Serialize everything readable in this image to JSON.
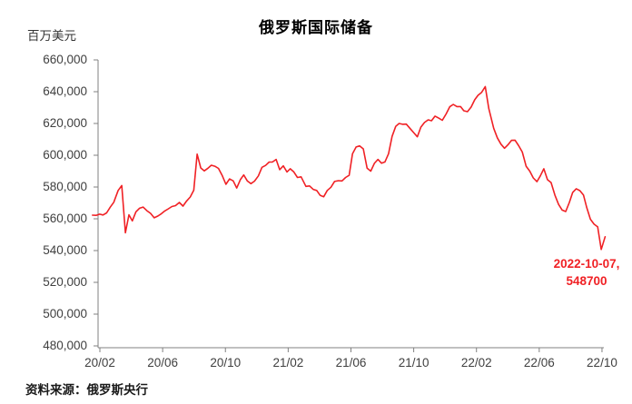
{
  "chart_data": {
    "type": "line",
    "title": "俄罗斯国际储备",
    "unit_label": "百万美元",
    "source": "资料来源：俄罗斯央行",
    "legend": [],
    "grid": false,
    "line_color": "#f02125",
    "axis_color": "#808080",
    "tick_label_color": "#404040",
    "ylim": [
      480000,
      660000
    ],
    "y_tick_labels": [
      "660,000",
      "640,000",
      "620,000",
      "600,000",
      "580,000",
      "560,000",
      "540,000",
      "520,000",
      "500,000",
      "480,000"
    ],
    "x_tick_labels": [
      "20/02",
      "20/06",
      "20/10",
      "21/02",
      "21/06",
      "21/10",
      "22/02",
      "22/06",
      "22/10"
    ],
    "annotation": {
      "line1": "2022-10-07,",
      "line2": "548700",
      "color": "#f02125"
    },
    "series": [
      [
        "2020-01-17",
        562300
      ],
      [
        "2020-01-24",
        562200
      ],
      [
        "2020-01-31",
        562900
      ],
      [
        "2020-02-07",
        562400
      ],
      [
        "2020-02-14",
        563700
      ],
      [
        "2020-02-21",
        567300
      ],
      [
        "2020-02-28",
        570400
      ],
      [
        "2020-03-06",
        577800
      ],
      [
        "2020-03-13",
        580900
      ],
      [
        "2020-03-20",
        551200
      ],
      [
        "2020-03-27",
        562500
      ],
      [
        "2020-04-03",
        558700
      ],
      [
        "2020-04-10",
        564400
      ],
      [
        "2020-04-17",
        566600
      ],
      [
        "2020-04-24",
        567400
      ],
      [
        "2020-05-01",
        565100
      ],
      [
        "2020-05-08",
        563400
      ],
      [
        "2020-05-15",
        560600
      ],
      [
        "2020-05-22",
        561700
      ],
      [
        "2020-05-29",
        563200
      ],
      [
        "2020-06-05",
        564900
      ],
      [
        "2020-06-12",
        566300
      ],
      [
        "2020-06-19",
        567700
      ],
      [
        "2020-06-26",
        568300
      ],
      [
        "2020-07-03",
        570300
      ],
      [
        "2020-07-10",
        568000
      ],
      [
        "2020-07-17",
        571200
      ],
      [
        "2020-07-24",
        573700
      ],
      [
        "2020-07-31",
        578000
      ],
      [
        "2020-08-07",
        600700
      ],
      [
        "2020-08-14",
        592000
      ],
      [
        "2020-08-21",
        590200
      ],
      [
        "2020-08-28",
        591800
      ],
      [
        "2020-09-04",
        593700
      ],
      [
        "2020-09-11",
        593100
      ],
      [
        "2020-09-18",
        591700
      ],
      [
        "2020-09-25",
        587400
      ],
      [
        "2020-10-02",
        581700
      ],
      [
        "2020-10-09",
        585100
      ],
      [
        "2020-10-16",
        583900
      ],
      [
        "2020-10-23",
        579400
      ],
      [
        "2020-10-30",
        584600
      ],
      [
        "2020-11-06",
        587600
      ],
      [
        "2020-11-13",
        583900
      ],
      [
        "2020-11-20",
        582100
      ],
      [
        "2020-11-27",
        583700
      ],
      [
        "2020-12-04",
        587000
      ],
      [
        "2020-12-11",
        592400
      ],
      [
        "2020-12-18",
        593600
      ],
      [
        "2020-12-25",
        595700
      ],
      [
        "2021-01-01",
        595800
      ],
      [
        "2021-01-08",
        597400
      ],
      [
        "2021-01-15",
        590900
      ],
      [
        "2021-01-22",
        593300
      ],
      [
        "2021-01-29",
        589500
      ],
      [
        "2021-02-05",
        591500
      ],
      [
        "2021-02-12",
        589500
      ],
      [
        "2021-02-19",
        586000
      ],
      [
        "2021-02-26",
        586400
      ],
      [
        "2021-03-05",
        580400
      ],
      [
        "2021-03-12",
        580700
      ],
      [
        "2021-03-19",
        578500
      ],
      [
        "2021-03-26",
        577800
      ],
      [
        "2021-04-02",
        574800
      ],
      [
        "2021-04-09",
        573900
      ],
      [
        "2021-04-16",
        577800
      ],
      [
        "2021-04-23",
        579800
      ],
      [
        "2021-04-30",
        583500
      ],
      [
        "2021-05-07",
        584000
      ],
      [
        "2021-05-14",
        583800
      ],
      [
        "2021-05-21",
        586000
      ],
      [
        "2021-05-28",
        587400
      ],
      [
        "2021-06-04",
        600900
      ],
      [
        "2021-06-11",
        605200
      ],
      [
        "2021-06-18",
        605900
      ],
      [
        "2021-06-25",
        604000
      ],
      [
        "2021-07-02",
        591800
      ],
      [
        "2021-07-09",
        590000
      ],
      [
        "2021-07-16",
        594900
      ],
      [
        "2021-07-23",
        597400
      ],
      [
        "2021-07-30",
        595000
      ],
      [
        "2021-08-06",
        595800
      ],
      [
        "2021-08-13",
        601000
      ],
      [
        "2021-08-20",
        611900
      ],
      [
        "2021-08-27",
        618200
      ],
      [
        "2021-09-03",
        620000
      ],
      [
        "2021-09-10",
        619500
      ],
      [
        "2021-09-17",
        619600
      ],
      [
        "2021-09-24",
        617000
      ],
      [
        "2021-10-01",
        614200
      ],
      [
        "2021-10-08",
        611600
      ],
      [
        "2021-10-15",
        617700
      ],
      [
        "2021-10-22",
        620600
      ],
      [
        "2021-10-29",
        622300
      ],
      [
        "2021-11-05",
        621700
      ],
      [
        "2021-11-12",
        624600
      ],
      [
        "2021-11-19",
        623400
      ],
      [
        "2021-11-26",
        622000
      ],
      [
        "2021-12-03",
        626000
      ],
      [
        "2021-12-10",
        630500
      ],
      [
        "2021-12-17",
        632000
      ],
      [
        "2021-12-24",
        630600
      ],
      [
        "2021-12-31",
        630600
      ],
      [
        "2022-01-07",
        628000
      ],
      [
        "2022-01-14",
        627400
      ],
      [
        "2022-01-21",
        630300
      ],
      [
        "2022-01-28",
        634900
      ],
      [
        "2022-02-04",
        637700
      ],
      [
        "2022-02-11",
        639600
      ],
      [
        "2022-02-18",
        643200
      ],
      [
        "2022-02-25",
        629400
      ],
      [
        "2022-03-04",
        617000
      ],
      [
        "2022-03-11",
        611000
      ],
      [
        "2022-03-18",
        607000
      ],
      [
        "2022-03-25",
        604400
      ],
      [
        "2022-04-01",
        606500
      ],
      [
        "2022-04-08",
        609400
      ],
      [
        "2022-04-15",
        609500
      ],
      [
        "2022-04-22",
        606000
      ],
      [
        "2022-04-29",
        602000
      ],
      [
        "2022-05-06",
        593100
      ],
      [
        "2022-05-13",
        590000
      ],
      [
        "2022-05-20",
        585700
      ],
      [
        "2022-05-27",
        583400
      ],
      [
        "2022-06-03",
        587000
      ],
      [
        "2022-06-10",
        591500
      ],
      [
        "2022-06-17",
        584600
      ],
      [
        "2022-06-24",
        582800
      ],
      [
        "2022-07-01",
        574900
      ],
      [
        "2022-07-08",
        569100
      ],
      [
        "2022-07-15",
        565500
      ],
      [
        "2022-07-22",
        564600
      ],
      [
        "2022-07-29",
        570300
      ],
      [
        "2022-08-05",
        576600
      ],
      [
        "2022-08-12",
        578900
      ],
      [
        "2022-08-19",
        577700
      ],
      [
        "2022-08-26",
        574900
      ],
      [
        "2022-09-02",
        567000
      ],
      [
        "2022-09-09",
        559700
      ],
      [
        "2022-09-16",
        556600
      ],
      [
        "2022-09-23",
        554900
      ],
      [
        "2022-09-30",
        540700
      ],
      [
        "2022-10-07",
        548700
      ]
    ]
  }
}
